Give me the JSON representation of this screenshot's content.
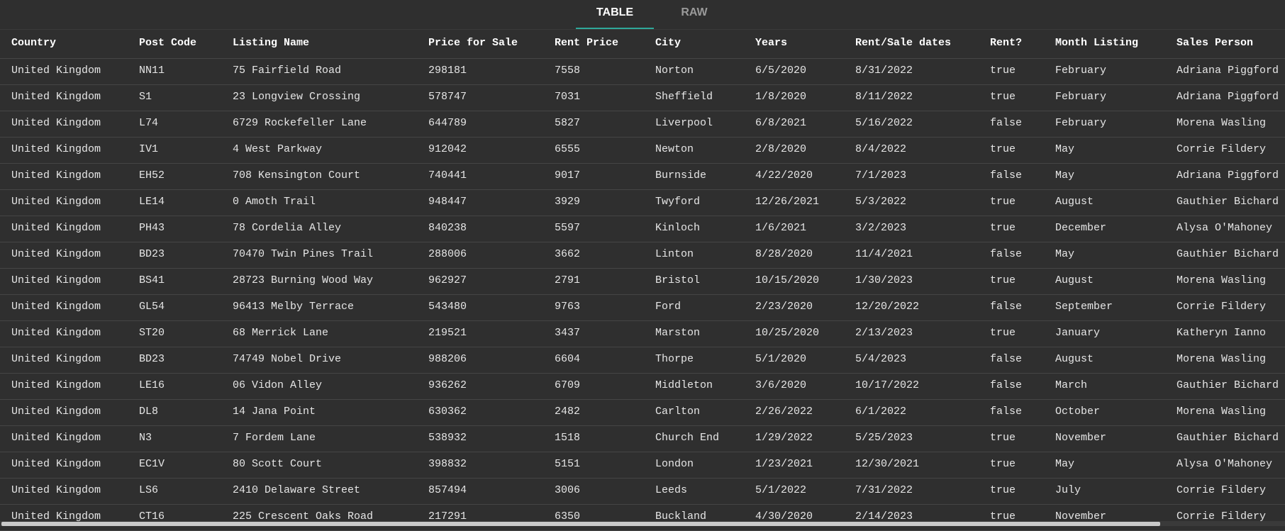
{
  "tabs": [
    "TABLE",
    "RAW"
  ],
  "table": {
    "columns": [
      "Country",
      "Post Code",
      "Listing Name",
      "Price for Sale",
      "Rent Price",
      "City",
      "Years",
      "Rent/Sale dates",
      "Rent?",
      "Month Listing",
      "Sales Person"
    ],
    "rows": [
      [
        "United Kingdom",
        "NN11",
        "75 Fairfield Road",
        "298181",
        "7558",
        "Norton",
        "6/5/2020",
        "8/31/2022",
        "true",
        "February",
        "Adriana Piggford"
      ],
      [
        "United Kingdom",
        "S1",
        "23 Longview Crossing",
        "578747",
        "7031",
        "Sheffield",
        "1/8/2020",
        "8/11/2022",
        "true",
        "February",
        "Adriana Piggford"
      ],
      [
        "United Kingdom",
        "L74",
        "6729 Rockefeller Lane",
        "644789",
        "5827",
        "Liverpool",
        "6/8/2021",
        "5/16/2022",
        "false",
        "February",
        "Morena Wasling"
      ],
      [
        "United Kingdom",
        "IV1",
        "4 West Parkway",
        "912042",
        "6555",
        "Newton",
        "2/8/2020",
        "8/4/2022",
        "true",
        "May",
        "Corrie Fildery"
      ],
      [
        "United Kingdom",
        "EH52",
        "708 Kensington Court",
        "740441",
        "9017",
        "Burnside",
        "4/22/2020",
        "7/1/2023",
        "false",
        "May",
        "Adriana Piggford"
      ],
      [
        "United Kingdom",
        "LE14",
        "0 Amoth Trail",
        "948447",
        "3929",
        "Twyford",
        "12/26/2021",
        "5/3/2022",
        "true",
        "August",
        "Gauthier Bichard"
      ],
      [
        "United Kingdom",
        "PH43",
        "78 Cordelia Alley",
        "840238",
        "5597",
        "Kinloch",
        "1/6/2021",
        "3/2/2023",
        "true",
        "December",
        "Alysa O'Mahoney"
      ],
      [
        "United Kingdom",
        "BD23",
        "70470 Twin Pines Trail",
        "288006",
        "3662",
        "Linton",
        "8/28/2020",
        "11/4/2021",
        "false",
        "May",
        "Gauthier Bichard"
      ],
      [
        "United Kingdom",
        "BS41",
        "28723 Burning Wood Way",
        "962927",
        "2791",
        "Bristol",
        "10/15/2020",
        "1/30/2023",
        "true",
        "August",
        "Morena Wasling"
      ],
      [
        "United Kingdom",
        "GL54",
        "96413 Melby Terrace",
        "543480",
        "9763",
        "Ford",
        "2/23/2020",
        "12/20/2022",
        "false",
        "September",
        "Corrie Fildery"
      ],
      [
        "United Kingdom",
        "ST20",
        "68 Merrick Lane",
        "219521",
        "3437",
        "Marston",
        "10/25/2020",
        "2/13/2023",
        "true",
        "January",
        "Katheryn Ianno"
      ],
      [
        "United Kingdom",
        "BD23",
        "74749 Nobel Drive",
        "988206",
        "6604",
        "Thorpe",
        "5/1/2020",
        "5/4/2023",
        "false",
        "August",
        "Morena Wasling"
      ],
      [
        "United Kingdom",
        "LE16",
        "06 Vidon Alley",
        "936262",
        "6709",
        "Middleton",
        "3/6/2020",
        "10/17/2022",
        "false",
        "March",
        "Gauthier Bichard"
      ],
      [
        "United Kingdom",
        "DL8",
        "14 Jana Point",
        "630362",
        "2482",
        "Carlton",
        "2/26/2022",
        "6/1/2022",
        "false",
        "October",
        "Morena Wasling"
      ],
      [
        "United Kingdom",
        "N3",
        "7 Fordem Lane",
        "538932",
        "1518",
        "Church End",
        "1/29/2022",
        "5/25/2023",
        "true",
        "November",
        "Gauthier Bichard"
      ],
      [
        "United Kingdom",
        "EC1V",
        "80 Scott Court",
        "398832",
        "5151",
        "London",
        "1/23/2021",
        "12/30/2021",
        "true",
        "May",
        "Alysa O'Mahoney"
      ],
      [
        "United Kingdom",
        "LS6",
        "2410 Delaware Street",
        "857494",
        "3006",
        "Leeds",
        "5/1/2022",
        "7/31/2022",
        "true",
        "July",
        "Corrie Fildery"
      ],
      [
        "United Kingdom",
        "CT16",
        "225 Crescent Oaks Road",
        "217291",
        "6350",
        "Buckland",
        "4/30/2020",
        "2/14/2023",
        "true",
        "November",
        "Corrie Fildery"
      ]
    ]
  }
}
